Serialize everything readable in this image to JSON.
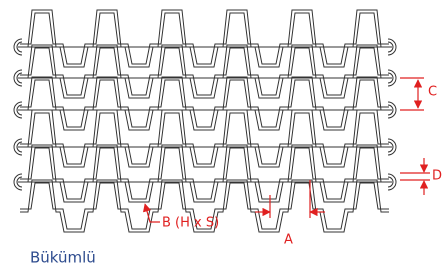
{
  "labels": {
    "b": "B (H x S)",
    "a": "A",
    "c": "C",
    "d": "D"
  },
  "caption": "Bükümlü"
}
